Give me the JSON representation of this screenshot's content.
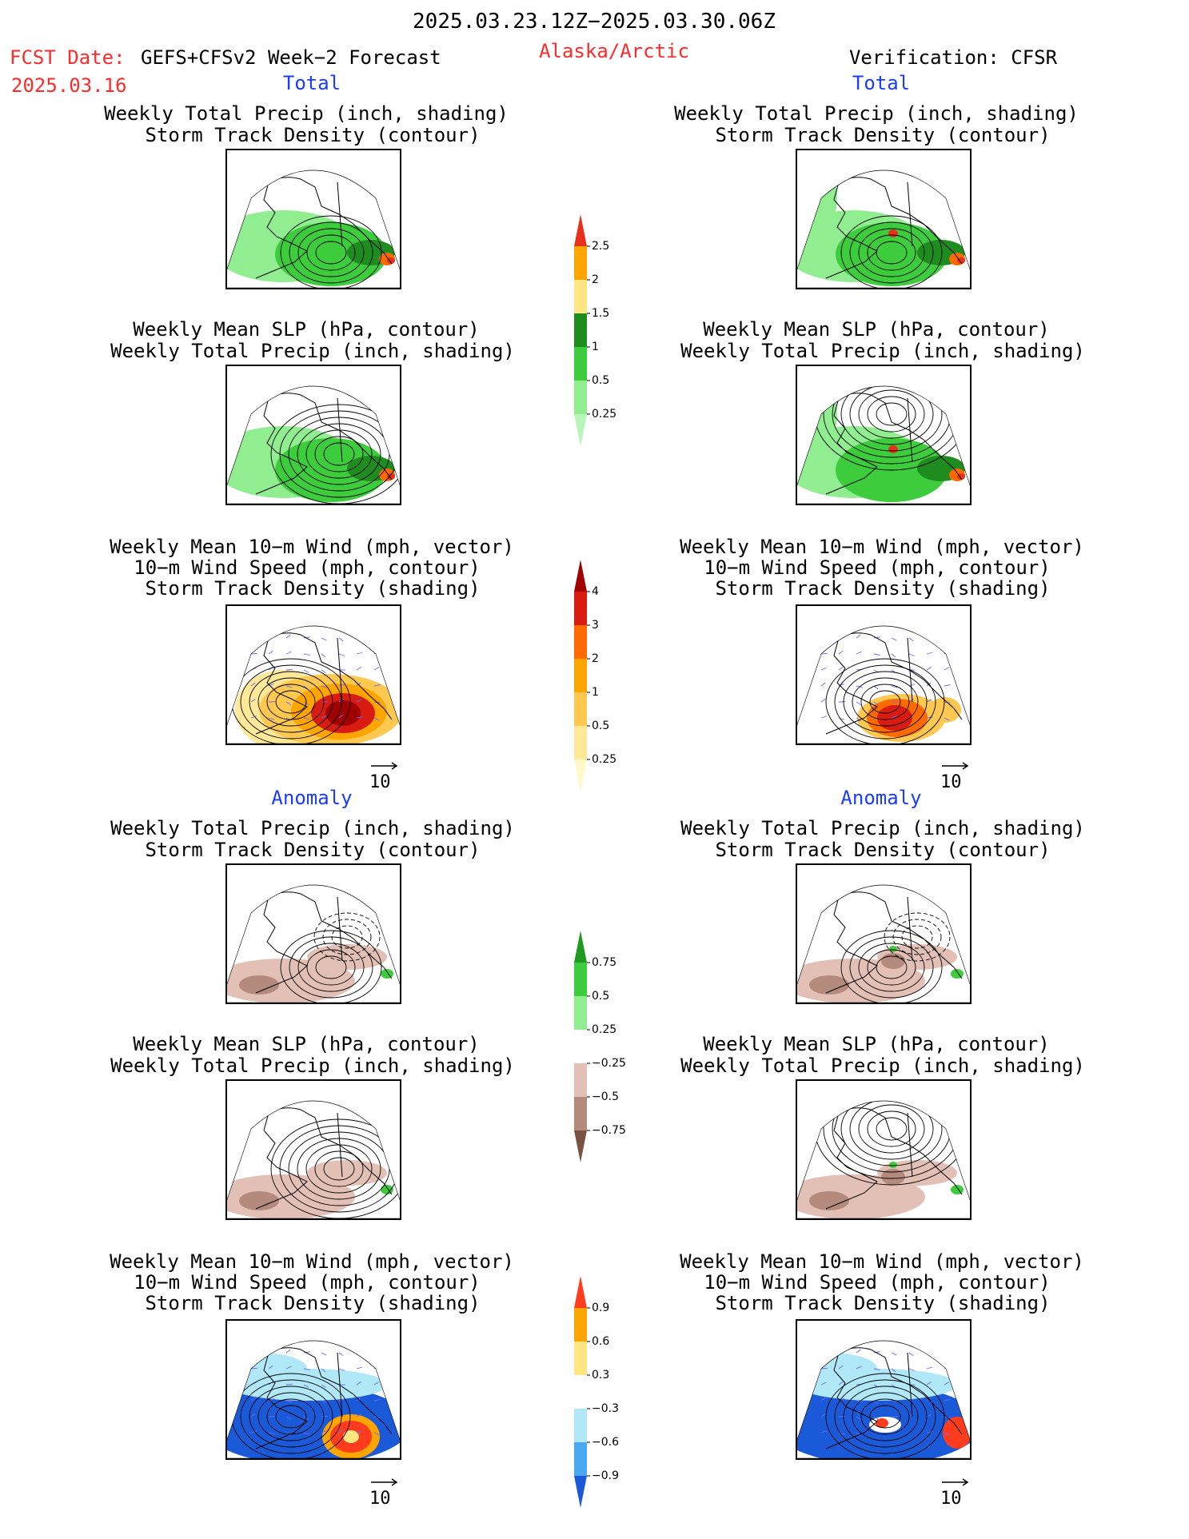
{
  "header": {
    "period": "2025.03.23.12Z−2025.03.30.06Z",
    "fcst_date_label": "FCST Date:",
    "fcst_product": "GEFS+CFSv2 Week−2 Forecast",
    "fcst_date": "2025.03.16",
    "region": "Alaska/Arctic",
    "verification": "Verification: CFSR"
  },
  "sections": {
    "total": "Total",
    "anomaly": "Anomaly"
  },
  "titles": {
    "precip_track": [
      "Weekly Total Precip (inch, shading)",
      "Storm Track Density (contour)"
    ],
    "slp_precip": [
      "Weekly Mean SLP (hPa, contour)",
      "Weekly Total Precip (inch, shading)"
    ],
    "wind_track": [
      "Weekly Mean 10−m Wind (mph, vector)",
      "10−m Wind Speed (mph, contour)",
      "Storm Track Density (shading)"
    ]
  },
  "vector_scale_label": "10",
  "colorbars": {
    "precip_total": {
      "labels": [
        "2.5",
        "2",
        "1.5",
        "1",
        "0.5",
        "0.25"
      ],
      "colors": [
        "#e8301c",
        "#ffa500",
        "#ffe680",
        "#1e8c1e",
        "#3ccc3c",
        "#90ee90",
        "#b8f5b8"
      ]
    },
    "track_total": {
      "labels": [
        "4",
        "3",
        "2",
        "1",
        "0.5",
        "0.25"
      ],
      "colors": [
        "#a00000",
        "#d81c12",
        "#ff6a00",
        "#ffa500",
        "#ffc850",
        "#ffe898",
        "#fff8c8"
      ]
    },
    "precip_anom": {
      "labels": [
        "0.75",
        "0.5",
        "0.25",
        "−0.25",
        "−0.5",
        "−0.75"
      ],
      "colors": [
        "#1e9a1e",
        "#3ccc3c",
        "#90ee90",
        "#ffffff",
        "#e2c0b6",
        "#b48a7c",
        "#7a5244"
      ]
    },
    "track_anom": {
      "labels": [
        "0.9",
        "0.6",
        "0.3",
        "−0.3",
        "−0.6",
        "−0.9"
      ],
      "colors": [
        "#ff3c1e",
        "#ffa500",
        "#ffe680",
        "#ffffff",
        "#b0e8f8",
        "#4aa8f0",
        "#1a5ad8"
      ]
    }
  },
  "panels": [
    {
      "id": "fcst-total-precip",
      "field": "precip",
      "mode": "total"
    },
    {
      "id": "fcst-total-slp",
      "field": "slp",
      "mode": "total"
    },
    {
      "id": "fcst-total-wind",
      "field": "wind",
      "mode": "total"
    },
    {
      "id": "fcst-anom-precip",
      "field": "precip",
      "mode": "anomaly"
    },
    {
      "id": "fcst-anom-slp",
      "field": "slp",
      "mode": "anomaly"
    },
    {
      "id": "fcst-anom-wind",
      "field": "wind",
      "mode": "anomaly"
    },
    {
      "id": "verif-total-precip",
      "field": "precip",
      "mode": "total"
    },
    {
      "id": "verif-total-slp",
      "field": "slp",
      "mode": "total"
    },
    {
      "id": "verif-total-wind",
      "field": "wind",
      "mode": "total"
    },
    {
      "id": "verif-anom-precip",
      "field": "precip",
      "mode": "anomaly"
    },
    {
      "id": "verif-anom-slp",
      "field": "slp",
      "mode": "anomaly"
    },
    {
      "id": "verif-anom-wind",
      "field": "wind",
      "mode": "anomaly"
    }
  ]
}
